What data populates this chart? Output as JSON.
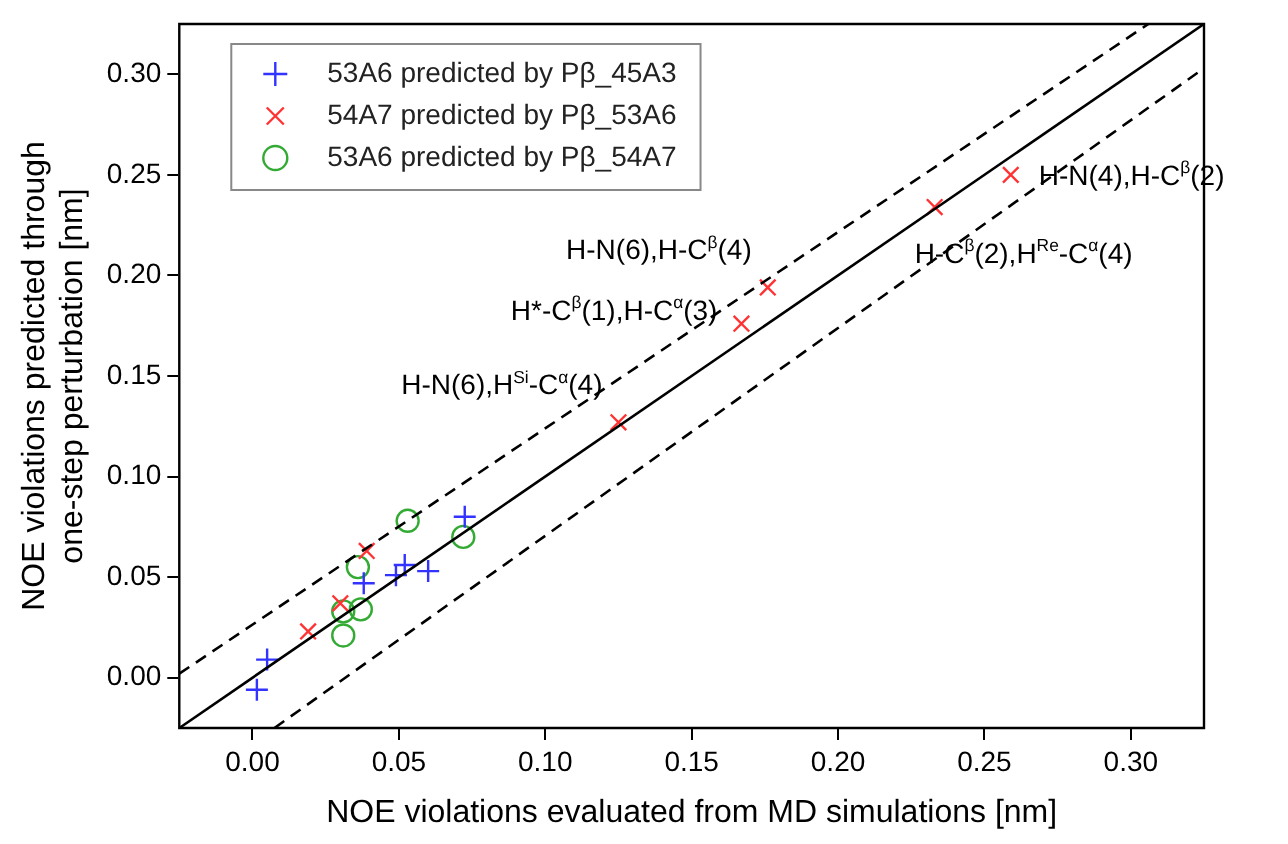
{
  "chart_data": {
    "type": "scatter",
    "xlabel": "NOE violations evaluated from MD simulations [nm]",
    "ylabel": "NOE violations predicted through\none-step perturbation [nm]",
    "xlim": [
      -0.025,
      0.325
    ],
    "xticks": [
      {
        "value": 0,
        "label": "0.00"
      },
      {
        "value": 0.05,
        "label": "0.05"
      },
      {
        "value": 0.1,
        "label": "0.10"
      },
      {
        "value": 0.15,
        "label": "0.15"
      },
      {
        "value": 0.2,
        "label": "0.20"
      },
      {
        "value": 0.25,
        "label": "0.25"
      },
      {
        "value": 0.3,
        "label": "0.30"
      }
    ],
    "ylim": [
      -0.025,
      0.325
    ],
    "yticks": [
      {
        "value": 0,
        "label": "0.00"
      },
      {
        "value": 0.05,
        "label": "0.05"
      },
      {
        "value": 0.1,
        "label": "0.10"
      },
      {
        "value": 0.15,
        "label": "0.15"
      },
      {
        "value": 0.2,
        "label": "0.20"
      },
      {
        "value": 0.25,
        "label": "0.25"
      },
      {
        "value": 0.3,
        "label": "0.30"
      }
    ],
    "grid": false,
    "legend": "top left",
    "series": [
      {
        "type": "line",
        "color": "#000000",
        "line_style": "solid",
        "marker": "none",
        "x": [
          -0.025,
          0.325
        ],
        "values": [
          -0.025,
          0.325
        ]
      },
      {
        "type": "line",
        "color": "#000000",
        "line_style": "dashed",
        "marker": "none",
        "x": [
          -0.025,
          0.306
        ],
        "values": [
          0.002,
          0.325
        ]
      },
      {
        "type": "line",
        "color": "#000000",
        "line_style": "dashed",
        "marker": "none",
        "x": [
          0.0075,
          0.325
        ],
        "values": [
          -0.025,
          0.303
        ]
      },
      {
        "name": "53A6 predicted by Pβ_45A3",
        "color": "#3333ff",
        "marker": "cross",
        "x": [
          0.0015,
          0.005,
          0.038,
          0.049,
          0.052,
          0.06,
          0.0725
        ],
        "values": [
          -0.006,
          0.009,
          0.047,
          0.051,
          0.056,
          0.053,
          0.08
        ]
      },
      {
        "name": "54A7 predicted by Pβ_53A6",
        "color": "#ff3333",
        "marker": "cross",
        "x": [
          0.019,
          0.03,
          0.039,
          0.125,
          0.167,
          0.176,
          0.233,
          0.259
        ],
        "values": [
          0.023,
          0.037,
          0.063,
          0.127,
          0.176,
          0.194,
          0.234,
          0.25
        ]
      },
      {
        "name": "53A6 predicted by Pβ_54A7",
        "color": "#33aa33",
        "marker": "circle",
        "x": [
          0.031,
          0.031,
          0.036,
          0.037,
          0.053,
          0.072
        ],
        "values": [
          0.033,
          0.021,
          0.055,
          0.034,
          0.078,
          0.07
        ]
      }
    ],
    "annotations": [
      {
        "text": "H-N(4),H-C$^{β}$(2)",
        "x": 0.259,
        "y": 0.25
      },
      {
        "text": "H-C$^{β}$(2),H$^{Re}$-C$^{α}$(4)",
        "x": 0.233,
        "y": 0.234
      },
      {
        "text": "H-N(6),H-C$^{β}$(4)",
        "x": 0.176,
        "y": 0.194
      },
      {
        "text": "H*-C$^{β}$(1),H-C$^{α}$(3)",
        "x": 0.167,
        "y": 0.176
      },
      {
        "text": "H-N(6),H$^{Si}$-C$^{α}$(4)",
        "x": 0.125,
        "y": 0.127
      }
    ]
  }
}
